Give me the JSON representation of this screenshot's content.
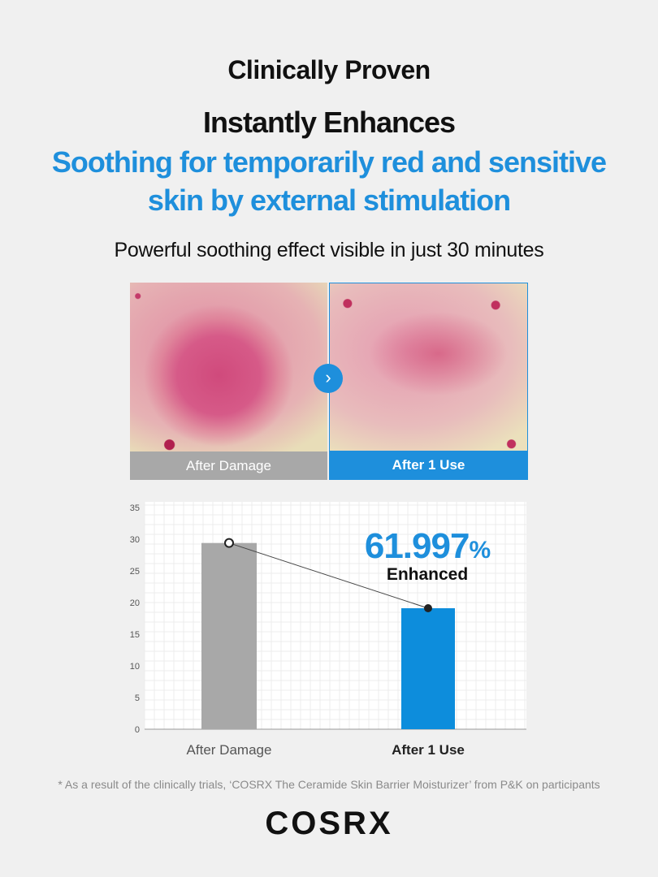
{
  "header": {
    "eyebrow": "Clinically Proven",
    "headline": "Instantly Enhances",
    "subheadline": "Soothing for temporarily red and sensitive skin by external stimulation",
    "caption": "Powerful soothing effect visible in just 30 minutes"
  },
  "photos": {
    "before_label": "After Damage",
    "after_label": "After 1 Use",
    "arrow_icon": "chevron-right-icon"
  },
  "chart_data": {
    "type": "bar",
    "categories": [
      "After Damage",
      "After 1 Use"
    ],
    "values": [
      29.4,
      19.1
    ],
    "ylim": [
      0,
      35
    ],
    "yticks": [
      "0",
      "5",
      "10",
      "15",
      "20",
      "25",
      "30",
      "35"
    ],
    "grid": true,
    "bar_colors": [
      "#a8a8a8",
      "#0d8ddc"
    ],
    "connector_line": true,
    "annotation": {
      "value": "61.997",
      "unit": "%",
      "label": "Enhanced"
    },
    "title": "",
    "xlabel": "",
    "ylabel": ""
  },
  "colors": {
    "accent": "#1e8fdc",
    "gray": "#a8a8a8"
  },
  "footnote": "* As a result of the clinically trials, ‘COSRX The Ceramide Skin Barrier Moisturizer’ from P&K on participants",
  "brand": "COSRX"
}
